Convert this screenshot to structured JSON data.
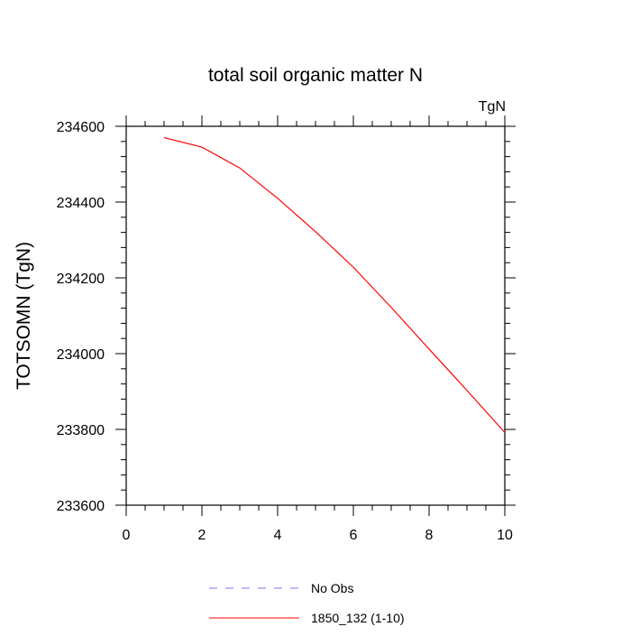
{
  "chart_data": {
    "type": "line",
    "title": "total soil organic matter N",
    "units_label": "TgN",
    "ylabel": "TOTSOMN  (TgN)",
    "xlabel": "",
    "xlim": [
      0,
      10
    ],
    "ylim": [
      233600,
      234600
    ],
    "x_ticks": [
      0,
      2,
      4,
      6,
      8,
      10
    ],
    "y_ticks": [
      233600,
      233800,
      234000,
      234200,
      234400,
      234600
    ],
    "series": [
      {
        "name": "1850_132 (1-10)",
        "color": "#ff0000",
        "x": [
          1,
          2,
          3,
          4,
          5,
          6,
          7,
          8,
          9,
          10
        ],
        "y": [
          234570,
          234545,
          234490,
          234410,
          234322,
          234228,
          234122,
          234012,
          233903,
          233792
        ]
      }
    ],
    "legend": [
      {
        "label": "No Obs",
        "color": "#7a7aee",
        "style": "dashed"
      },
      {
        "label": "1850_132 (1-10)",
        "color": "#ff0000",
        "style": "solid"
      }
    ],
    "legend_placement": "bottom",
    "grid": false
  }
}
